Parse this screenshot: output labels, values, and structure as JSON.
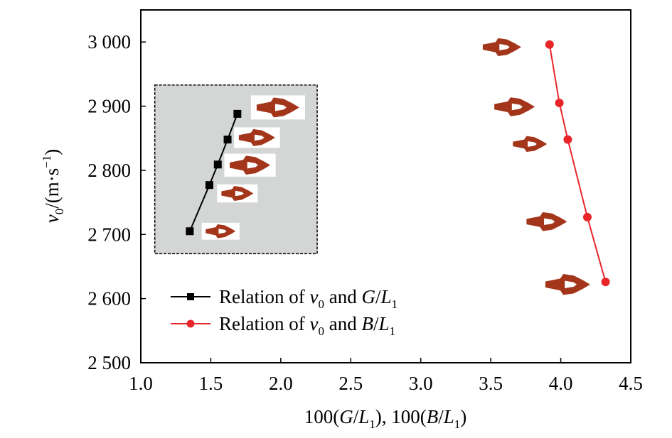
{
  "chart_data": {
    "type": "line",
    "xlabel": "100(G/L₁), 100(B/L₁)",
    "ylabel": "v₀/(m·s⁻¹)",
    "xlim": [
      1.0,
      4.5
    ],
    "ylim": [
      2500,
      3050
    ],
    "xticks": [
      1.0,
      1.5,
      2.0,
      2.5,
      3.0,
      3.5,
      4.0,
      4.5
    ],
    "xtick_labels": [
      "1.0",
      "1.5",
      "2.0",
      "2.5",
      "3.0",
      "3.5",
      "4.0",
      "4.5"
    ],
    "yticks": [
      2500,
      2600,
      2700,
      2800,
      2900,
      3000
    ],
    "ytick_labels": [
      "2 500",
      "2 600",
      "2 700",
      "2 800",
      "2 900",
      "3 000"
    ],
    "grid": false,
    "legend_position": "lower-left",
    "series": [
      {
        "name": "Relation of v0 and G/L1",
        "color": "#000000",
        "marker": "square",
        "x": [
          1.35,
          1.49,
          1.55,
          1.62,
          1.69
        ],
        "y": [
          2705,
          2777,
          2809,
          2848,
          2888
        ]
      },
      {
        "name": "Relation of v0 and B/L1",
        "color": "#e8262a",
        "marker": "circle",
        "x": [
          3.92,
          3.99,
          4.05,
          4.19,
          4.32
        ],
        "y": [
          2996,
          2905,
          2848,
          2727,
          2626
        ]
      }
    ],
    "inset": {
      "background": "#d3d6d5",
      "border_style": "dashed",
      "x_range": [
        1.1,
        2.26
      ],
      "y_range": [
        2670,
        2933
      ]
    },
    "projectile_images": {
      "color": "#a3351a",
      "items": [
        {
          "series": 1,
          "cx": 1.98,
          "cy": 2898,
          "size": 1.0,
          "frame": true
        },
        {
          "series": 1,
          "cx": 1.83,
          "cy": 2851,
          "size": 0.85,
          "frame": true
        },
        {
          "series": 1,
          "cx": 1.78,
          "cy": 2808,
          "size": 0.95,
          "frame": true
        },
        {
          "series": 1,
          "cx": 1.69,
          "cy": 2764,
          "size": 0.75,
          "frame": true
        },
        {
          "series": 1,
          "cx": 1.57,
          "cy": 2705,
          "size": 0.7,
          "frame": true
        },
        {
          "series": 2,
          "cx": 3.58,
          "cy": 2992,
          "size": 0.9,
          "frame": false
        },
        {
          "series": 2,
          "cx": 3.67,
          "cy": 2899,
          "size": 0.95,
          "frame": false
        },
        {
          "series": 2,
          "cx": 3.78,
          "cy": 2841,
          "size": 0.8,
          "frame": false
        },
        {
          "series": 2,
          "cx": 3.9,
          "cy": 2720,
          "size": 0.95,
          "frame": false
        },
        {
          "series": 2,
          "cx": 4.05,
          "cy": 2622,
          "size": 1.05,
          "frame": false
        }
      ]
    }
  }
}
